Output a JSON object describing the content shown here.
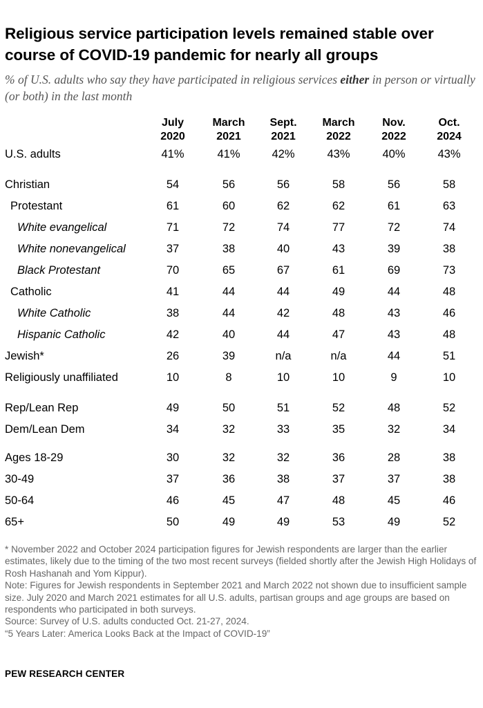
{
  "title": "Religious service participation levels remained stable over course of COVID-19 pandemic for nearly all groups",
  "subtitle_before": "% of U.S. adults who say they have participated in religious services ",
  "subtitle_emph": "either",
  "subtitle_after": " in person or virtually (or both) in the last month",
  "chart_data": {
    "type": "table",
    "columns": [
      {
        "line1": "July",
        "line2": "2020"
      },
      {
        "line1": "March",
        "line2": "2021"
      },
      {
        "line1": "Sept.",
        "line2": "2021"
      },
      {
        "line1": "March",
        "line2": "2022"
      },
      {
        "line1": "Nov.",
        "line2": "2022"
      },
      {
        "line1": "Oct.",
        "line2": "2024"
      }
    ],
    "rows": [
      {
        "label": "U.S. adults",
        "indent": 0,
        "values": [
          "41%",
          "41%",
          "42%",
          "43%",
          "40%",
          "43%"
        ]
      },
      {
        "label": "Christian",
        "indent": 0,
        "values": [
          "54",
          "56",
          "56",
          "58",
          "56",
          "58"
        ]
      },
      {
        "label": "Protestant",
        "indent": 1,
        "values": [
          "61",
          "60",
          "62",
          "62",
          "61",
          "63"
        ]
      },
      {
        "label": "White evangelical",
        "indent": 2,
        "values": [
          "71",
          "72",
          "74",
          "77",
          "72",
          "74"
        ]
      },
      {
        "label": "White nonevangelical",
        "indent": 2,
        "values": [
          "37",
          "38",
          "40",
          "43",
          "39",
          "38"
        ]
      },
      {
        "label": "Black Protestant",
        "indent": 2,
        "values": [
          "70",
          "65",
          "67",
          "61",
          "69",
          "73"
        ]
      },
      {
        "label": "Catholic",
        "indent": 1,
        "values": [
          "41",
          "44",
          "44",
          "49",
          "44",
          "48"
        ]
      },
      {
        "label": "White Catholic",
        "indent": 2,
        "values": [
          "38",
          "44",
          "42",
          "48",
          "43",
          "46"
        ]
      },
      {
        "label": "Hispanic Catholic",
        "indent": 2,
        "values": [
          "42",
          "40",
          "44",
          "47",
          "43",
          "48"
        ]
      },
      {
        "label": "Jewish*",
        "indent": 0,
        "values": [
          "26",
          "39",
          "n/a",
          "n/a",
          "44",
          "51"
        ]
      },
      {
        "label": "Religiously unaffiliated",
        "indent": 0,
        "values": [
          "10",
          "8",
          "10",
          "10",
          "9",
          "10"
        ]
      },
      {
        "label": "Rep/Lean Rep",
        "indent": 0,
        "values": [
          "49",
          "50",
          "51",
          "52",
          "48",
          "52"
        ]
      },
      {
        "label": "Dem/Lean Dem",
        "indent": 0,
        "values": [
          "34",
          "32",
          "33",
          "35",
          "32",
          "34"
        ]
      },
      {
        "label": "Ages 18-29",
        "indent": 0,
        "values": [
          "30",
          "32",
          "32",
          "36",
          "28",
          "38"
        ]
      },
      {
        "label": "30-49",
        "indent": 0,
        "values": [
          "37",
          "36",
          "38",
          "37",
          "37",
          "38"
        ]
      },
      {
        "label": "50-64",
        "indent": 0,
        "values": [
          "46",
          "45",
          "47",
          "48",
          "45",
          "46"
        ]
      },
      {
        "label": "65+",
        "indent": 0,
        "values": [
          "50",
          "49",
          "49",
          "53",
          "49",
          "52"
        ]
      }
    ]
  },
  "notes": [
    "* November 2022 and October 2024 participation figures for Jewish respondents are larger than the earlier estimates, likely due to the timing of the two most recent surveys (fielded shortly after the Jewish High Holidays of Rosh Hashanah and Yom Kippur).",
    "Note: Figures for Jewish respondents in September 2021 and March 2022 not shown due to insufficient sample size. July 2020 and March 2021 estimates for all U.S. adults, partisan groups and age groups are based on respondents who participated in both surveys.",
    "Source: Survey of U.S. adults conducted Oct. 21-27, 2024.",
    "“5 Years Later: America Looks Back at the Impact of COVID-19”"
  ],
  "brand": "PEW RESEARCH CENTER"
}
